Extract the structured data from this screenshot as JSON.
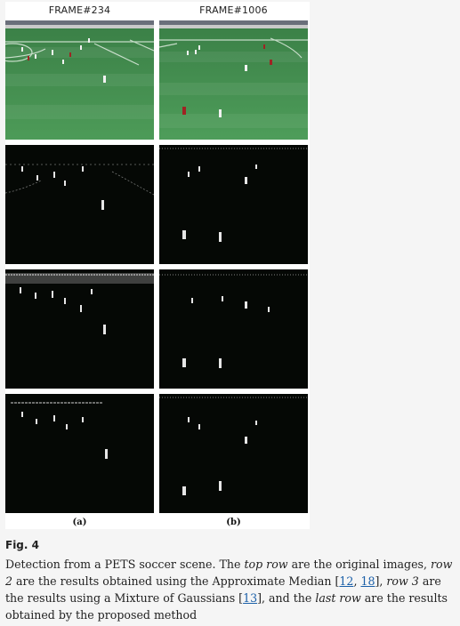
{
  "figure": {
    "frame_labels": [
      "FRAME#234",
      "FRAME#1006"
    ],
    "column_labels": [
      "(a)",
      "(b)"
    ]
  },
  "caption": {
    "fig_label": "Fig. 4",
    "part1": "Detection from a PETS soccer scene. The ",
    "top_row": "top row",
    "part2": " are the original images, ",
    "row2": "row 2",
    "part3": " are the results obtained using the Approximate Median [",
    "ref12": "12",
    "comma": ", ",
    "ref18": "18",
    "part4": "], ",
    "row3": "row 3",
    "part5": " are the results using a Mixture of Gaussians [",
    "ref13": "13",
    "part6": "], and the ",
    "last_row": "last row",
    "part7": " are the results obtained by the proposed method"
  },
  "colors": {
    "pitch": "#3f8a4c",
    "mask_bg": "#050805",
    "link": "#1a5fa8"
  }
}
